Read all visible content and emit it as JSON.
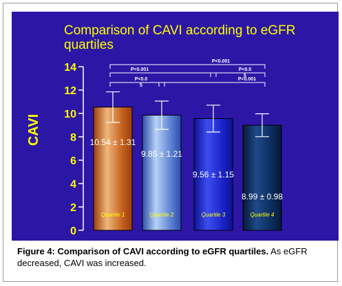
{
  "chart_data": {
    "type": "bar",
    "title_line1": "Comparison of CAVI according to eGFR",
    "title_line2": "quartiles",
    "ylabel": "CAVI",
    "ylim": [
      0,
      14
    ],
    "yticks": [
      "0",
      "2",
      "4",
      "6",
      "8",
      "10",
      "12",
      "14"
    ],
    "categories": [
      "Quartile 1",
      "Quartile 2",
      "Quartile 3",
      "Quartile 4"
    ],
    "values": [
      10.54,
      9.85,
      9.56,
      8.99
    ],
    "errors": [
      1.31,
      1.21,
      1.15,
      0.98
    ],
    "value_labels": [
      "10.54 ± 1.31",
      "9.85 ± 1.21",
      "9.56 ± 1.15",
      "8.99 ± 0.98"
    ],
    "bar_colors": [
      [
        "#f0b67a",
        "#c4601e",
        "#9a3f0c"
      ],
      [
        "#b7d2f6",
        "#5a7fd2",
        "#2f4fa8"
      ],
      [
        "#3c4ef0",
        "#1a22c6",
        "#0c1294"
      ],
      [
        "#1d4a88",
        "#0c2c5c",
        "#061838"
      ]
    ],
    "significance": [
      {
        "label": "P<0.001",
        "from": 1,
        "to": 4
      },
      {
        "label": "P<0.001",
        "from": 1,
        "to": 3
      },
      {
        "label": "P<0.0\n5",
        "from": 1,
        "to": 2
      },
      {
        "label": "P<0.0\n5",
        "from": 3,
        "to": 4
      },
      {
        "label": "P<0.001",
        "from": 2,
        "to": 4
      }
    ],
    "colors": {
      "background": "#2c16a6",
      "title": "#ffff00",
      "axis": "#ffffff",
      "ytick_text": "#ffff00",
      "category_text": "#ffff00",
      "value_text": "#ffffff",
      "bracket": "#ffffff",
      "bracket_text": "#ffffff"
    }
  },
  "caption": {
    "label": "Figure 4: Comparison of CAVI according to eGFR quartiles.",
    "text": " As eGFR decreased, CAVI was increased."
  }
}
